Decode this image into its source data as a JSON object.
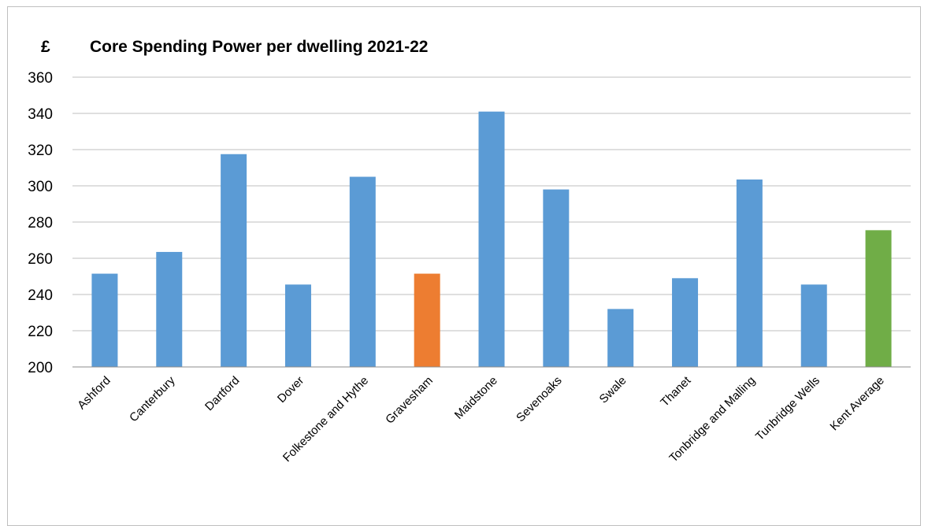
{
  "chart_data": {
    "type": "bar",
    "title": "Core Spending Power per dwelling 2021-22",
    "ylabel": "£",
    "xlabel": "",
    "ylim": [
      200,
      360
    ],
    "yticks": [
      200,
      220,
      240,
      260,
      280,
      300,
      320,
      340,
      360
    ],
    "grid": true,
    "legend": "none",
    "categories": [
      "Ashford",
      "Canterbury",
      "Dartford",
      "Dover",
      "Folkestone and Hythe",
      "Gravesham",
      "Maidstone",
      "Sevenoaks",
      "Swale",
      "Thanet",
      "Tonbridge and Malling",
      "Tunbridge Wells",
      "Kent Average"
    ],
    "values": [
      251.5,
      263.5,
      317.5,
      245.5,
      305,
      251.5,
      341,
      298,
      232,
      249,
      303.5,
      245.5,
      275.5
    ],
    "colors": {
      "default": "#5b9bd5",
      "highlight": "#ed7d31",
      "average": "#70ad47"
    },
    "bar_colors": [
      "#5b9bd5",
      "#5b9bd5",
      "#5b9bd5",
      "#5b9bd5",
      "#5b9bd5",
      "#ed7d31",
      "#5b9bd5",
      "#5b9bd5",
      "#5b9bd5",
      "#5b9bd5",
      "#5b9bd5",
      "#5b9bd5",
      "#70ad47"
    ]
  }
}
